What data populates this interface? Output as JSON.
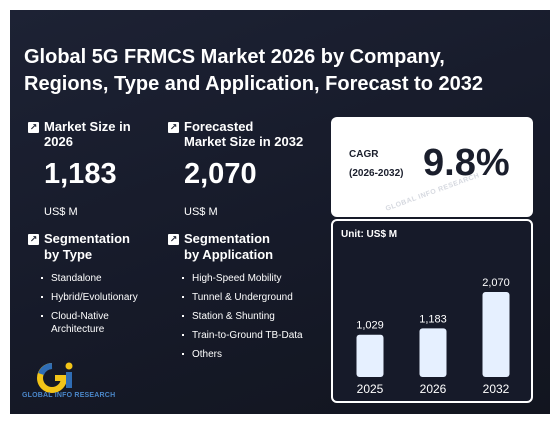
{
  "title": "Global 5G FRMCS Market 2026 by Company, Regions, Type and Application, Forecast to 2032",
  "kpis": [
    {
      "label_line1": "Market Size in",
      "label_line2": "2026",
      "value": "1,183",
      "unit": "US$ M",
      "icon": "arrow-up-right-icon"
    },
    {
      "label_line1": "Forecasted",
      "label_line2": "Market Size in 2032",
      "value": "2,070",
      "unit": "US$ M",
      "icon": "arrow-up-right-icon"
    }
  ],
  "segmentation": {
    "type": {
      "title_line1": "Segmentation",
      "title_line2": "by Type",
      "items": [
        "Standalone",
        "Hybrid/Evolutionary",
        "Cloud-Native Architecture"
      ]
    },
    "application": {
      "title_line1": "Segmentation",
      "title_line2": "by Application",
      "items": [
        "High-Speed Mobility",
        "Tunnel & Underground",
        "Station & Shunting",
        "Train-to-Ground TB-Data",
        "Others"
      ]
    }
  },
  "cagr": {
    "label_line1": "CAGR",
    "label_line2": "(2026-2032)",
    "value": "9.8%"
  },
  "watermark": "GLOBAL INFO RESEARCH",
  "logo": {
    "mark": "Gi",
    "text": "GLOBAL INFO RESEARCH"
  },
  "colors": {
    "background": "#161a29",
    "bar": "#e6f0ff",
    "accent_blue": "#2f6db5",
    "accent_yellow": "#f2c418"
  },
  "chart_data": {
    "type": "bar",
    "unit_label": "Unit: US$ M",
    "categories": [
      "2025",
      "2026",
      "2032"
    ],
    "values": [
      1029,
      1183,
      2070
    ],
    "value_labels": [
      "1,029",
      "1,183",
      "2,070"
    ],
    "ylim": [
      0,
      2070
    ],
    "grid": false,
    "legend": "none"
  }
}
